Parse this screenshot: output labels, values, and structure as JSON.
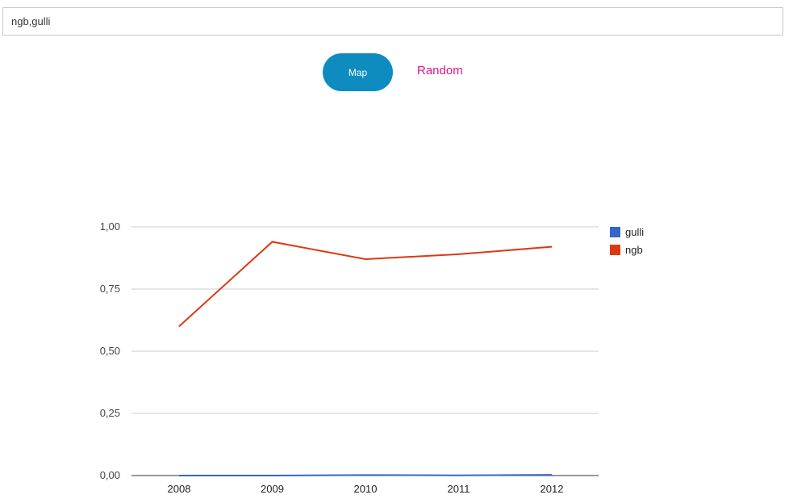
{
  "search": {
    "value": "ngb,gulli"
  },
  "buttons": {
    "map_label": "Map",
    "random_label": "Random"
  },
  "chart_data": {
    "type": "line",
    "categories": [
      "2008",
      "2009",
      "2010",
      "2011",
      "2012"
    ],
    "series": [
      {
        "name": "gulli",
        "color": "#3366cc",
        "values": [
          0.0,
          0.0,
          0.002,
          0.001,
          0.003
        ]
      },
      {
        "name": "ngb",
        "color": "#dc3912",
        "values": [
          0.6,
          0.94,
          0.87,
          0.89,
          0.92
        ]
      }
    ],
    "y_ticks": [
      "1,00",
      "0,75",
      "0,50",
      "0,25",
      "0,00"
    ],
    "y_tick_values": [
      1.0,
      0.75,
      0.5,
      0.25,
      0.0
    ],
    "ylim": [
      0,
      1
    ],
    "grid": true,
    "legend_position": "right"
  }
}
